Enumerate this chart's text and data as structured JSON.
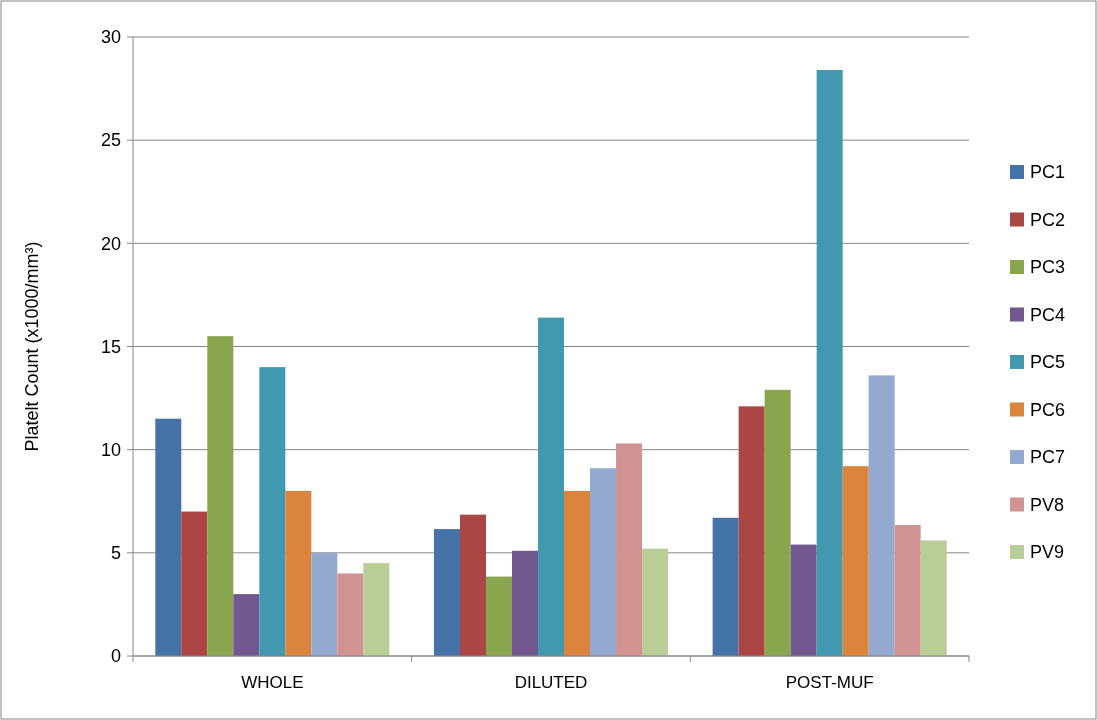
{
  "chart_data": {
    "type": "bar",
    "ylabel": "Platelt Count (x1000/mm³)",
    "categories": [
      "WHOLE",
      "DILUTED",
      "POST-MUF"
    ],
    "series": [
      {
        "name": "PC1",
        "color": "#4572a7",
        "values": [
          11.5,
          6.15,
          6.7
        ]
      },
      {
        "name": "PC2",
        "color": "#aa4643",
        "values": [
          7.0,
          6.85,
          12.1
        ]
      },
      {
        "name": "PC3",
        "color": "#89a54e",
        "values": [
          15.5,
          3.85,
          12.9
        ]
      },
      {
        "name": "PC4",
        "color": "#71588f",
        "values": [
          3.0,
          5.1,
          5.4
        ]
      },
      {
        "name": "PC5",
        "color": "#4198af",
        "values": [
          14.0,
          16.4,
          28.4
        ]
      },
      {
        "name": "PC6",
        "color": "#db843d",
        "values": [
          8.0,
          8.0,
          9.2
        ]
      },
      {
        "name": "PC7",
        "color": "#93a9cf",
        "values": [
          5.0,
          9.1,
          13.6
        ]
      },
      {
        "name": "PV8",
        "color": "#d19392",
        "values": [
          4.0,
          10.3,
          6.35
        ]
      },
      {
        "name": "PV9",
        "color": "#b9cd96",
        "values": [
          4.5,
          5.2,
          5.6
        ]
      }
    ],
    "ylim": [
      0,
      30
    ],
    "yticks": [
      0,
      5,
      10,
      15,
      20,
      25,
      30
    ],
    "grid": "y",
    "legend": "right"
  }
}
